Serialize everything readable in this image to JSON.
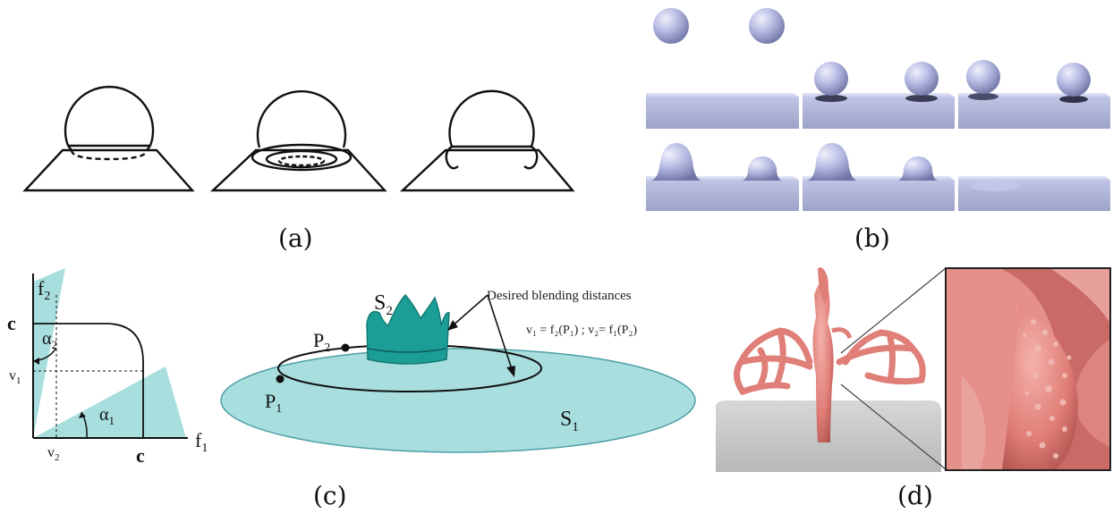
{
  "figure": {
    "captions": {
      "a": "(a)",
      "b": "(b)",
      "c": "(c)",
      "d": "(d)"
    },
    "panel_c": {
      "axis_y_label": "f",
      "axis_y_sub": "2",
      "axis_x_label": "f",
      "axis_x_sub": "1",
      "c_top": "c",
      "c_right": "c",
      "v1": "v",
      "v1_sub": "1",
      "v2": "v",
      "v2_sub": "2",
      "alpha1": "α",
      "alpha1_sub": "1",
      "alpha2": "α",
      "alpha2_sub": "2",
      "s1": "S",
      "s1_sub": "1",
      "s2": "S",
      "s2_sub": "2",
      "p1": "P",
      "p1_sub": "1",
      "p2": "P",
      "p2_sub": "2",
      "desired": "Desired blending distances",
      "formula": "v₁ = f₂(P₁) ; v₂= f₁(P₂)"
    },
    "colors": {
      "teal_fill": "#a8dede",
      "teal_dark": "#1b9e96",
      "sphere": "#b7bbe0",
      "slab": "#aeb3d6",
      "dragon": "#e07e78",
      "ground": "#c9cbc9"
    }
  }
}
